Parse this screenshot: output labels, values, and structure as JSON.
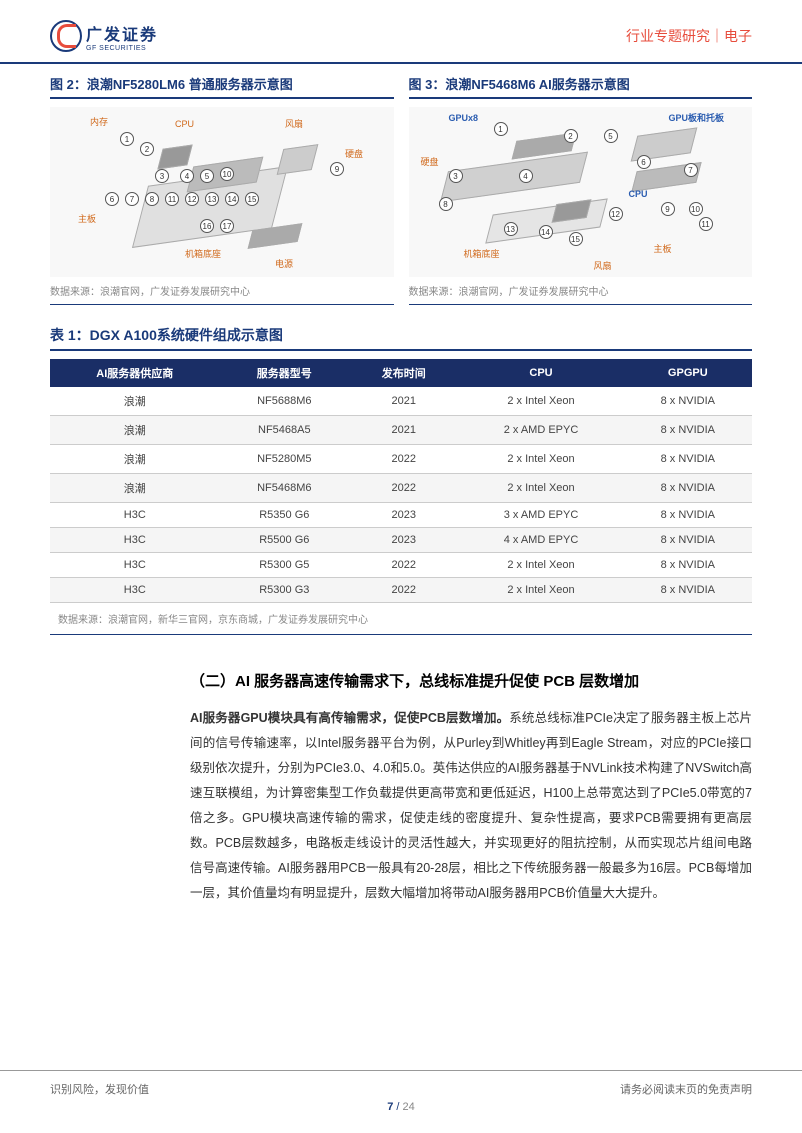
{
  "header": {
    "logo_cn": "广发证券",
    "logo_en": "GF SECURITIES",
    "category": "行业专题研究｜电子"
  },
  "figures": {
    "fig2": {
      "title": "图 2：浪潮NF5280LM6 普通服务器示意图",
      "source": "数据来源：浪潮官网，广发证券发展研究中心",
      "labels": {
        "memory": "内存",
        "cpu": "CPU",
        "fan": "风扇",
        "disk": "硬盘",
        "mainboard": "主板",
        "chassis": "机箱底座",
        "power": "电源"
      }
    },
    "fig3": {
      "title": "图 3：浪潮NF5468M6 AI服务器示意图",
      "source": "数据来源：浪潮官网，广发证券发展研究中心",
      "labels": {
        "gpux8": "GPUx8",
        "gpuboard": "GPU板和托板",
        "disk": "硬盘",
        "cpu": "CPU",
        "chassis": "机箱底座",
        "mainboard": "主板",
        "fan": "风扇"
      }
    }
  },
  "table1": {
    "title": "表 1：DGX A100系统硬件组成示意图",
    "columns": [
      "AI服务器供应商",
      "服务器型号",
      "发布时间",
      "CPU",
      "GPGPU"
    ],
    "rows": [
      [
        "浪潮",
        "NF5688M6",
        "2021",
        "2 x Intel Xeon",
        "8 x NVIDIA"
      ],
      [
        "浪潮",
        "NF5468A5",
        "2021",
        "2 x AMD EPYC",
        "8 x NVIDIA"
      ],
      [
        "浪潮",
        "NF5280M5",
        "2022",
        "2 x Intel Xeon",
        "8 x NVIDIA"
      ],
      [
        "浪潮",
        "NF5468M6",
        "2022",
        "2 x Intel Xeon",
        "8 x NVIDIA"
      ],
      [
        "H3C",
        "R5350 G6",
        "2023",
        "3 x AMD EPYC",
        "8 x NVIDIA"
      ],
      [
        "H3C",
        "R5500 G6",
        "2023",
        "4 x AMD EPYC",
        "8 x NVIDIA"
      ],
      [
        "H3C",
        "R5300 G5",
        "2022",
        "2 x Intel Xeon",
        "8 x NVIDIA"
      ],
      [
        "H3C",
        "R5300 G3",
        "2022",
        "2 x Intel Xeon",
        "8 x NVIDIA"
      ]
    ],
    "source": "数据来源：浪潮官网，新华三官网，京东商城，广发证券发展研究中心"
  },
  "section": {
    "heading": "（二）AI 服务器高速传输需求下，总线标准提升促使 PCB 层数增加",
    "para_bold": "AI服务器GPU模块具有高传输需求，促使PCB层数增加。",
    "para_rest": "系统总线标准PCIe决定了服务器主板上芯片间的信号传输速率，以Intel服务器平台为例，从Purley到Whitley再到Eagle Stream，对应的PCIe接口级别依次提升，分别为PCIe3.0、4.0和5.0。英伟达供应的AI服务器基于NVLink技术构建了NVSwitch高速互联模组，为计算密集型工作负载提供更高带宽和更低延迟，H100上总带宽达到了PCIe5.0带宽的7倍之多。GPU模块高速传输的需求，促使走线的密度提升、复杂性提高，要求PCB需要拥有更高层数。PCB层数越多，电路板走线设计的灵活性越大，并实现更好的阻抗控制，从而实现芯片组间电路信号高速传输。AI服务器用PCB一般具有20-28层，相比之下传统服务器一般最多为16层。PCB每增加一层，其价值量均有明显提升，层数大幅增加将带动AI服务器用PCB价值量大大提升。"
  },
  "footer": {
    "left": "识别风险，发现价值",
    "right": "请务必阅读末页的免责声明",
    "page_current": "7",
    "page_total": "24"
  },
  "colors": {
    "brand_blue": "#1a3a7a",
    "accent_red": "#e74c3c",
    "table_header_bg": "#1a2e66",
    "label_orange": "#d0681a"
  }
}
